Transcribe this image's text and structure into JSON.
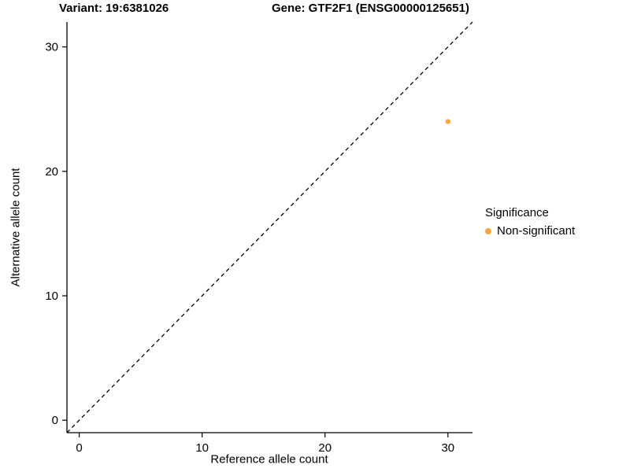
{
  "title": {
    "variant": "Variant: 19:6381026",
    "gene": "Gene: GTF2F1 (ENSG00000125651)"
  },
  "axes": {
    "x_label": "Reference allele count",
    "y_label": "Alternative allele count"
  },
  "legend": {
    "title": "Significance",
    "items": [
      {
        "label": "Non-significant",
        "color": "#FAA43A"
      }
    ]
  },
  "chart_data": {
    "type": "scatter",
    "title": "Variant: 19:6381026 | Gene: GTF2F1 (ENSG00000125651)",
    "xlabel": "Reference allele count",
    "ylabel": "Alternative allele count",
    "xlim": [
      -1,
      32
    ],
    "ylim": [
      -1,
      32
    ],
    "xticks": [
      0,
      10,
      20,
      30
    ],
    "yticks": [
      0,
      10,
      20,
      30
    ],
    "grid": false,
    "legend_position": "right",
    "series": [
      {
        "name": "Non-significant",
        "color": "#FAA43A",
        "points": [
          {
            "x": 30,
            "y": 24
          }
        ]
      }
    ],
    "reference_line": {
      "kind": "identity",
      "style": "dashed",
      "color": "#000000"
    }
  }
}
